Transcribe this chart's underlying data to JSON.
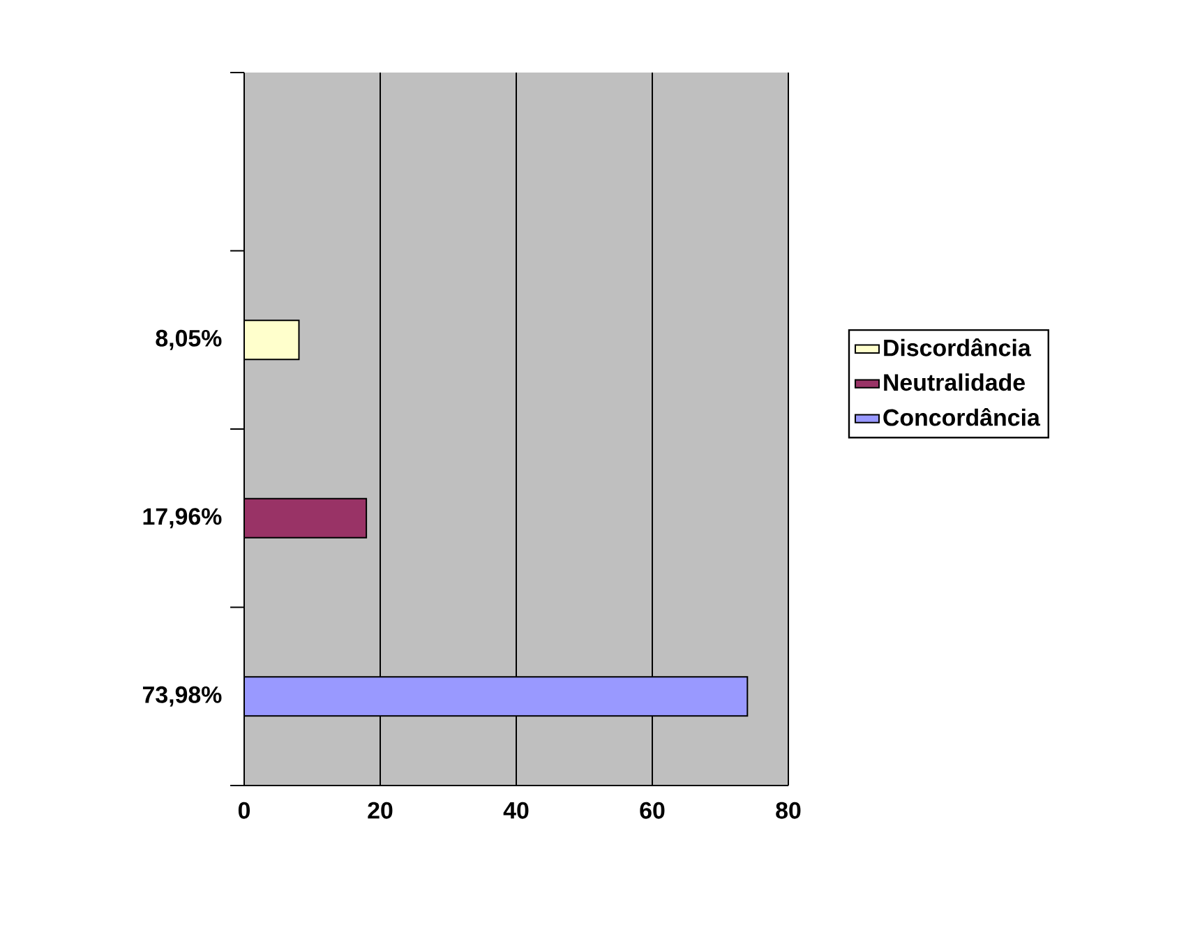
{
  "chart_data": {
    "type": "bar",
    "orientation": "horizontal",
    "categories": [
      null,
      "8,05%",
      "17,96%",
      "73,98%"
    ],
    "series": [
      {
        "name": "Discordância",
        "color": "#ffffcc",
        "values": [
          null,
          8.05,
          null,
          null
        ]
      },
      {
        "name": "Neutralidade",
        "color": "#993366",
        "values": [
          null,
          null,
          17.96,
          null
        ]
      },
      {
        "name": "Concordância",
        "color": "#9999ff",
        "values": [
          null,
          null,
          null,
          73.98
        ]
      }
    ],
    "xlim": [
      0,
      80
    ],
    "xticks": [
      0,
      20,
      40,
      60,
      80
    ],
    "grid": "x",
    "legend": "right"
  }
}
